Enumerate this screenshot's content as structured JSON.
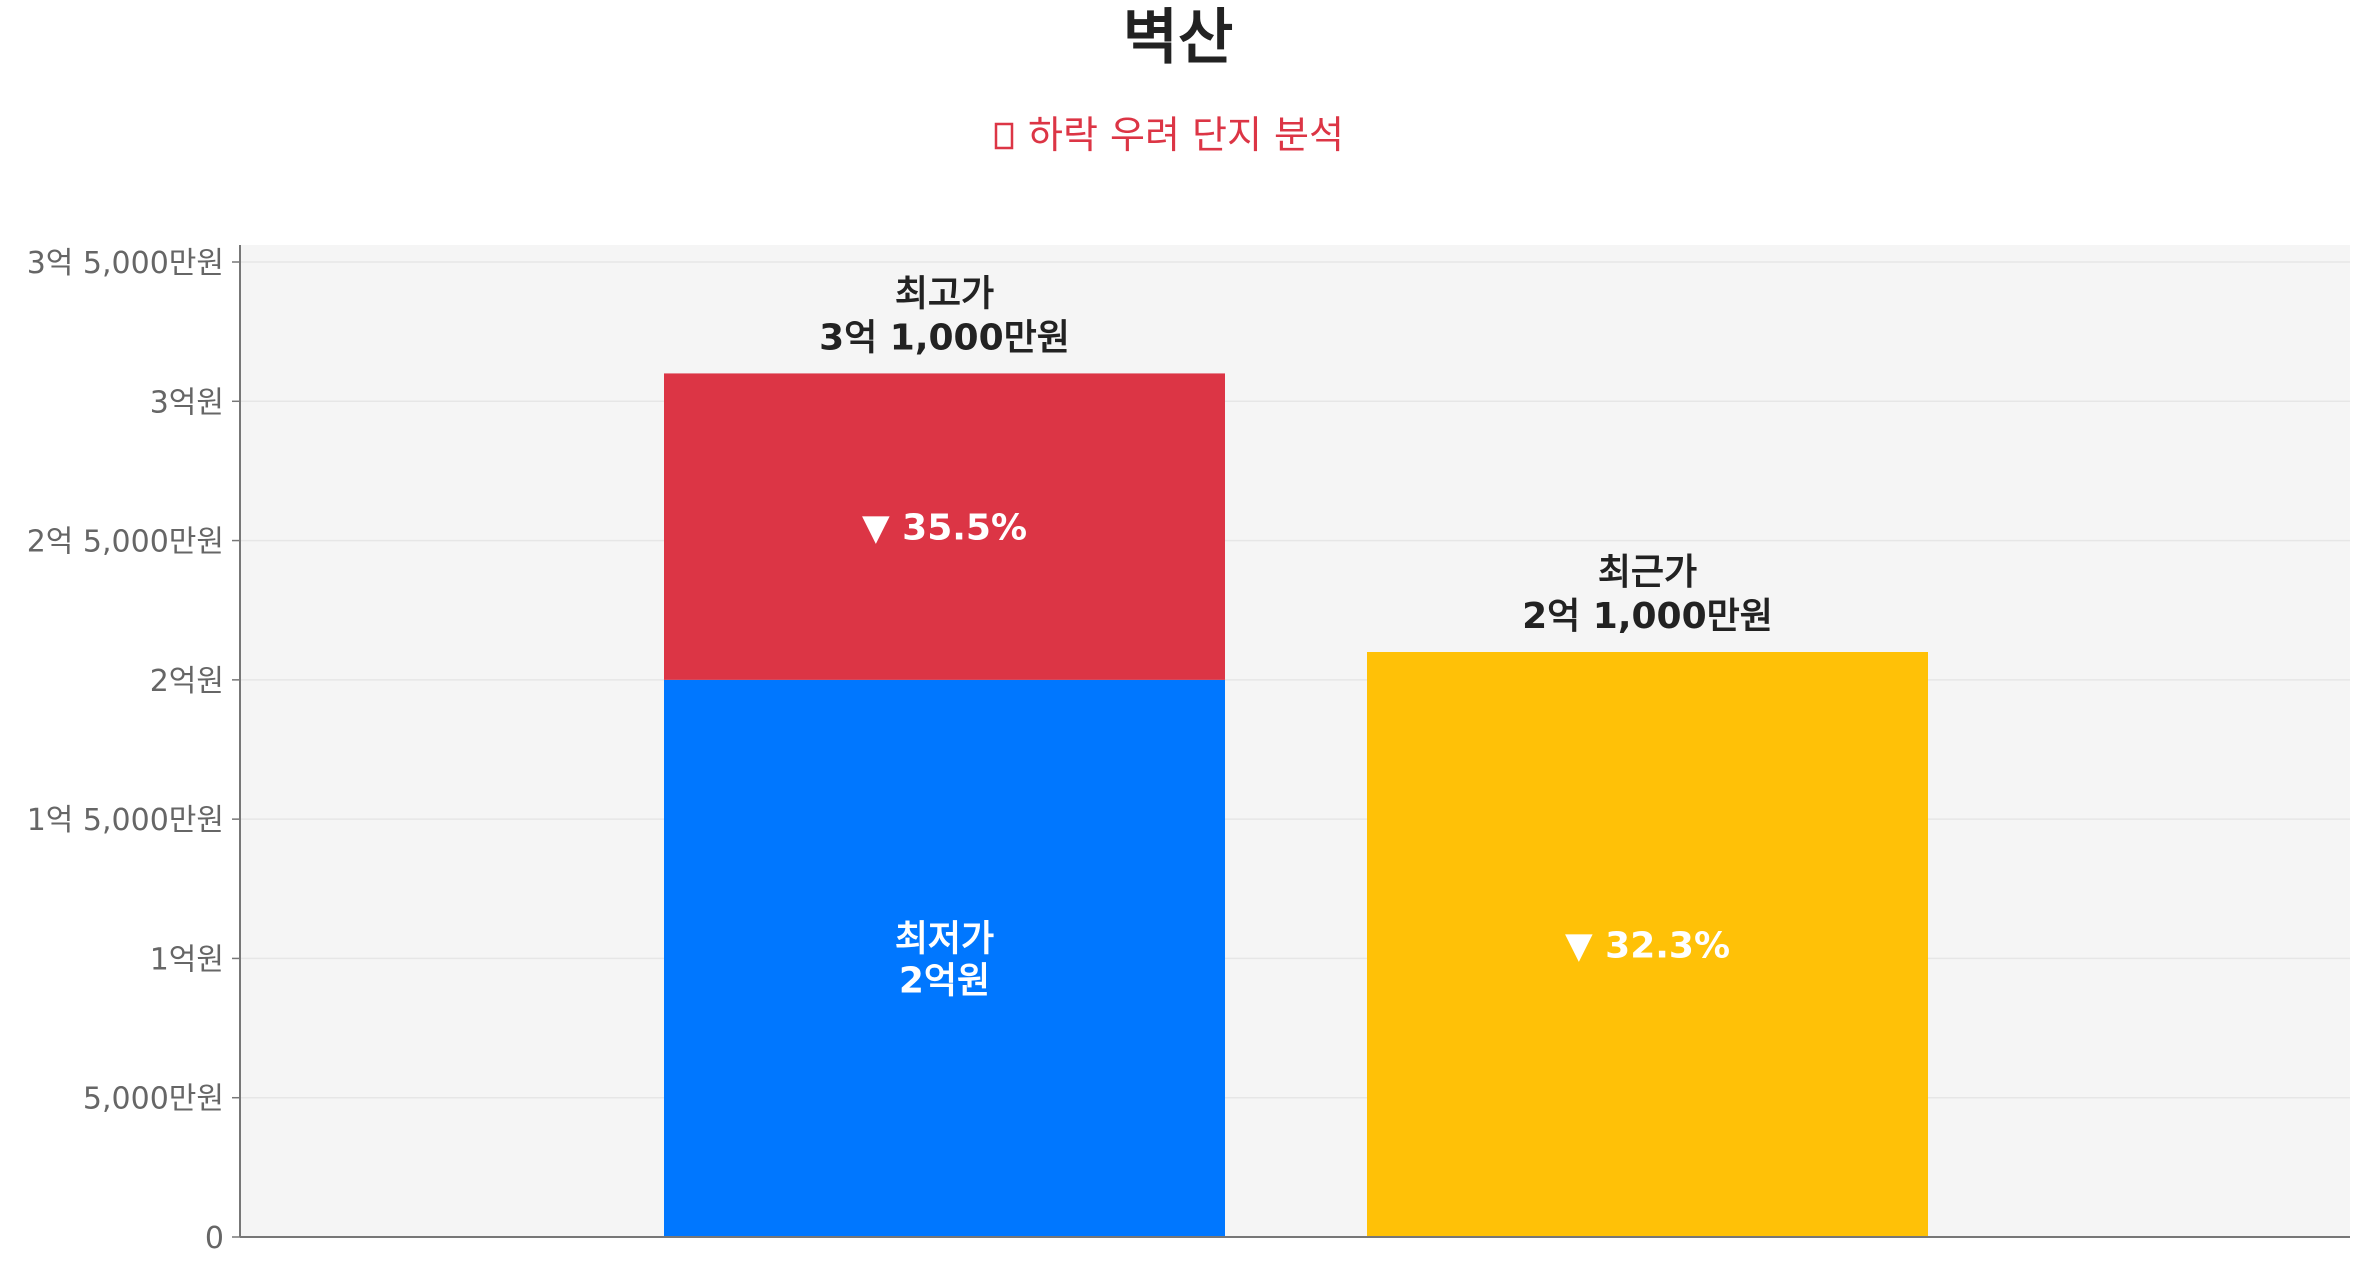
{
  "chart_data": {
    "type": "bar",
    "title": "벽산",
    "subtitle": "하락 우려 단지 분석",
    "subtitle_icon": "warning-icon",
    "xlabel": "",
    "ylabel": "",
    "ylim": [
      0,
      360000000
    ],
    "y_ticks": [
      {
        "value": 0,
        "label": "0"
      },
      {
        "value": 50000000,
        "label": "5,000만원"
      },
      {
        "value": 100000000,
        "label": "1억원"
      },
      {
        "value": 150000000,
        "label": "1억 5,000만원"
      },
      {
        "value": 200000000,
        "label": "2억원"
      },
      {
        "value": 250000000,
        "label": "2억 5,000만원"
      },
      {
        "value": 300000000,
        "label": "3억원"
      },
      {
        "value": 350000000,
        "label": "3억 5,000만원"
      }
    ],
    "grid": true,
    "bars": [
      {
        "segments": [
          {
            "from": 0,
            "to": 200000000,
            "color": "#0077ff",
            "label_lines": [
              "최저가",
              "2억원"
            ]
          },
          {
            "from": 200000000,
            "to": 310000000,
            "color": "#dc3545",
            "label_lines": [
              "▼ 35.5%"
            ]
          }
        ],
        "top_label_lines": [
          "최고가",
          "3억 1,000만원"
        ]
      },
      {
        "segments": [
          {
            "from": 0,
            "to": 210000000,
            "color": "#ffc107",
            "label_lines": [
              "▼ 32.3%"
            ]
          }
        ],
        "top_label_lines": [
          "최근가",
          "2억 1,000만원"
        ]
      }
    ],
    "colors": {
      "title": "#222222",
      "subtitle": "#dc3545",
      "plot_background": "#f5f5f5",
      "gridline": "#e6e6e6",
      "axis": "#777777",
      "tick_text": "#666666",
      "top_label_text": "#222222",
      "segment_label_text": "#ffffff"
    }
  }
}
